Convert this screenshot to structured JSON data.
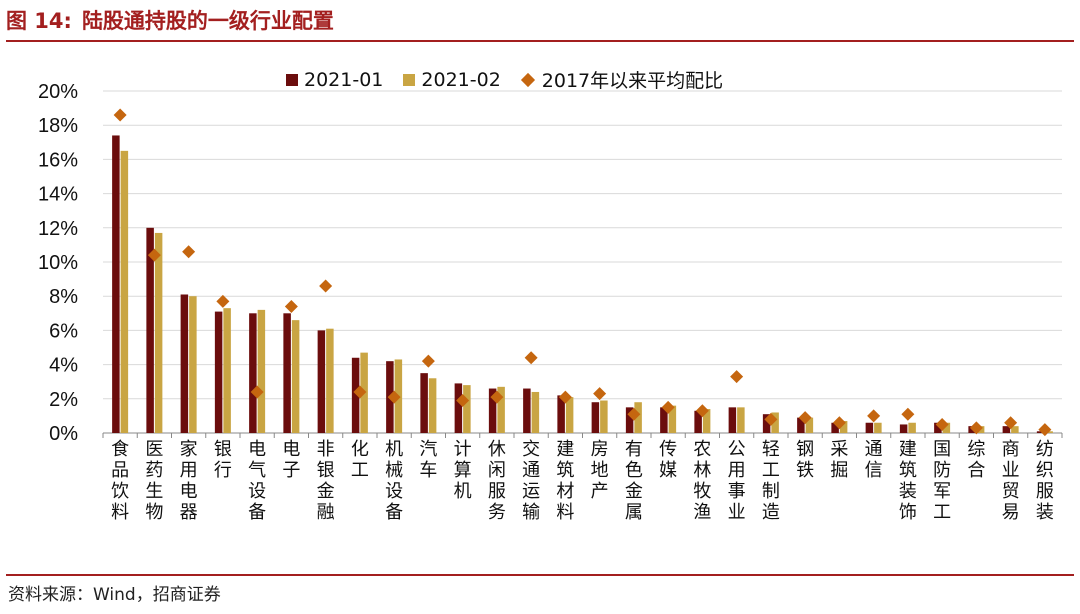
{
  "header": {
    "figure_no": "图 14:",
    "title": "陆股通持股的一级行业配置"
  },
  "footer": {
    "source": "资料来源：Wind，招商证券"
  },
  "colors": {
    "brand": "#a31f1f",
    "series1": "#6b0d0d",
    "series2": "#c9a543",
    "series3": "#c5660f",
    "grid": "#d9d9d9"
  },
  "chart_data": {
    "type": "bar",
    "title": "",
    "xlabel": "",
    "ylabel": "",
    "ylim": [
      0,
      20
    ],
    "yticks": [
      "0%",
      "2%",
      "4%",
      "6%",
      "8%",
      "10%",
      "12%",
      "14%",
      "16%",
      "18%",
      "20%"
    ],
    "grid": true,
    "legend_position": "top",
    "categories": [
      "食品饮料",
      "医药生物",
      "家用电器",
      "银行",
      "电气设备",
      "电子",
      "非银金融",
      "化工",
      "机械设备",
      "汽车",
      "计算机",
      "休闲服务",
      "交通运输",
      "建筑材料",
      "房地产",
      "有色金属",
      "传媒",
      "农林牧渔",
      "公用事业",
      "轻工制造",
      "钢铁",
      "采掘",
      "通信",
      "建筑装饰",
      "国防军工",
      "综合",
      "商业贸易",
      "纺织服装"
    ],
    "series": [
      {
        "name": "2021-01",
        "type": "bar",
        "values": [
          17.4,
          12.0,
          8.1,
          7.1,
          7.0,
          7.0,
          6.0,
          4.4,
          4.2,
          3.5,
          2.9,
          2.6,
          2.6,
          2.2,
          1.8,
          1.5,
          1.5,
          1.3,
          1.5,
          1.1,
          0.9,
          0.6,
          0.6,
          0.5,
          0.6,
          0.4,
          0.4,
          0.1
        ]
      },
      {
        "name": "2021-02",
        "type": "bar",
        "values": [
          16.5,
          11.7,
          8.0,
          7.3,
          7.2,
          6.6,
          6.1,
          4.7,
          4.3,
          3.2,
          2.8,
          2.7,
          2.4,
          2.1,
          1.9,
          1.8,
          1.6,
          1.4,
          1.5,
          1.2,
          0.9,
          0.7,
          0.6,
          0.6,
          0.6,
          0.4,
          0.4,
          0.1
        ]
      },
      {
        "name": "2017年以来平均配比",
        "type": "marker",
        "values": [
          18.6,
          10.4,
          10.6,
          7.7,
          2.4,
          7.4,
          8.6,
          2.4,
          2.1,
          4.2,
          1.9,
          2.1,
          4.4,
          2.1,
          2.3,
          1.1,
          1.5,
          1.3,
          3.3,
          0.8,
          0.9,
          0.6,
          1.0,
          1.1,
          0.5,
          0.3,
          0.6,
          0.2
        ]
      }
    ]
  }
}
